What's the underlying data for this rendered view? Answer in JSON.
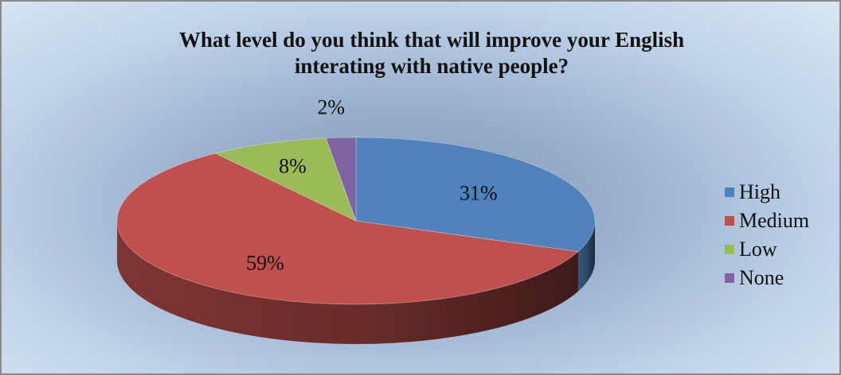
{
  "chart_data": {
    "type": "pie",
    "title_lines": [
      "What level do you think that will improve your English",
      "interating with native people?"
    ],
    "slices": [
      {
        "name": "High",
        "value": 31,
        "label": "31%",
        "color": "#4f81bd"
      },
      {
        "name": "Medium",
        "value": 59,
        "label": "59%",
        "color": "#c0504d"
      },
      {
        "name": "Low",
        "value": 8,
        "label": "8%",
        "color": "#9bbb59"
      },
      {
        "name": "None",
        "value": 2,
        "label": "2%",
        "color": "#8064a2"
      }
    ],
    "legend_position": "right",
    "style": "3d-pie"
  }
}
